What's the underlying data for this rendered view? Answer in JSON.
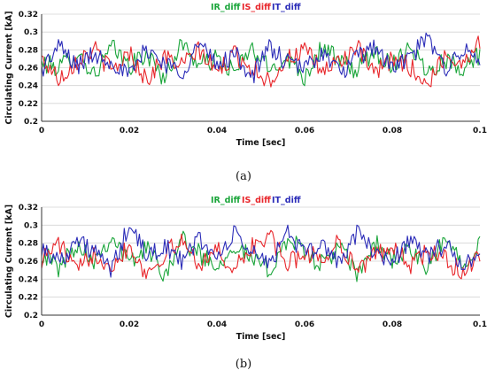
{
  "chart_data": [
    {
      "type": "line",
      "caption": "(a)",
      "xlabel": "Time [sec]",
      "ylabel": "Circulating Current [kA]",
      "xlim": [
        0,
        0.1
      ],
      "ylim": [
        0.2,
        0.32
      ],
      "x_ticks": [
        "0",
        "0.02",
        "0.04",
        "0.06",
        "0.08",
        "0.1"
      ],
      "y_ticks": [
        "0.2",
        "0.22",
        "0.24",
        "0.26",
        "0.28",
        "0.3",
        "0.32"
      ],
      "grid": "horizontal",
      "legend_position": "top-center",
      "x": [
        0,
        0.004,
        0.008,
        0.012,
        0.016,
        0.02,
        0.024,
        0.028,
        0.032,
        0.036,
        0.04,
        0.044,
        0.048,
        0.052,
        0.056,
        0.06,
        0.064,
        0.068,
        0.072,
        0.076,
        0.08,
        0.084,
        0.088,
        0.092,
        0.096,
        0.1
      ],
      "series": [
        {
          "name": "IR_diff",
          "color": "#1aa53a",
          "values": [
            0.265,
            0.26,
            0.278,
            0.252,
            0.283,
            0.262,
            0.275,
            0.248,
            0.288,
            0.263,
            0.27,
            0.255,
            0.281,
            0.258,
            0.272,
            0.25,
            0.284,
            0.266,
            0.257,
            0.279,
            0.262,
            0.286,
            0.255,
            0.27,
            0.26,
            0.275
          ]
        },
        {
          "name": "IS_diff",
          "color": "#e8262b",
          "values": [
            0.27,
            0.248,
            0.268,
            0.281,
            0.256,
            0.277,
            0.246,
            0.272,
            0.262,
            0.28,
            0.254,
            0.275,
            0.26,
            0.245,
            0.27,
            0.279,
            0.256,
            0.268,
            0.282,
            0.252,
            0.27,
            0.262,
            0.24,
            0.274,
            0.265,
            0.291
          ]
        },
        {
          "name": "IT_diff",
          "color": "#2b2cb8",
          "values": [
            0.258,
            0.284,
            0.262,
            0.275,
            0.268,
            0.25,
            0.282,
            0.265,
            0.255,
            0.287,
            0.262,
            0.276,
            0.25,
            0.283,
            0.265,
            0.26,
            0.278,
            0.254,
            0.27,
            0.285,
            0.258,
            0.272,
            0.292,
            0.26,
            0.28,
            0.266
          ]
        }
      ]
    },
    {
      "type": "line",
      "caption": "(b)",
      "xlabel": "Time [sec]",
      "ylabel": "Circulating Current [kA]",
      "xlim": [
        0,
        0.1
      ],
      "ylim": [
        0.2,
        0.32
      ],
      "x_ticks": [
        "0",
        "0.02",
        "0.04",
        "0.06",
        "0.08",
        "0.1"
      ],
      "y_ticks": [
        "0.2",
        "0.22",
        "0.24",
        "0.26",
        "0.28",
        "0.3",
        "0.32"
      ],
      "grid": "horizontal",
      "legend_position": "top-center",
      "x": [
        0,
        0.004,
        0.008,
        0.012,
        0.016,
        0.02,
        0.024,
        0.028,
        0.032,
        0.036,
        0.04,
        0.044,
        0.048,
        0.052,
        0.056,
        0.06,
        0.064,
        0.068,
        0.072,
        0.076,
        0.08,
        0.084,
        0.088,
        0.092,
        0.096,
        0.1
      ],
      "series": [
        {
          "name": "IR_diff",
          "color": "#1aa53a",
          "values": [
            0.27,
            0.252,
            0.28,
            0.262,
            0.288,
            0.258,
            0.275,
            0.246,
            0.284,
            0.268,
            0.255,
            0.279,
            0.262,
            0.249,
            0.285,
            0.27,
            0.256,
            0.276,
            0.244,
            0.28,
            0.262,
            0.272,
            0.25,
            0.285,
            0.26,
            0.28
          ]
        },
        {
          "name": "IS_diff",
          "color": "#e8262b",
          "values": [
            0.262,
            0.28,
            0.248,
            0.27,
            0.255,
            0.278,
            0.245,
            0.268,
            0.282,
            0.258,
            0.272,
            0.25,
            0.276,
            0.288,
            0.256,
            0.27,
            0.262,
            0.282,
            0.25,
            0.266,
            0.278,
            0.255,
            0.27,
            0.262,
            0.247,
            0.268
          ]
        },
        {
          "name": "IT_diff",
          "color": "#2b2cb8",
          "values": [
            0.275,
            0.26,
            0.283,
            0.27,
            0.25,
            0.3,
            0.265,
            0.278,
            0.258,
            0.286,
            0.262,
            0.29,
            0.27,
            0.255,
            0.296,
            0.265,
            0.28,
            0.258,
            0.292,
            0.27,
            0.26,
            0.284,
            0.266,
            0.278,
            0.255,
            0.27
          ]
        }
      ]
    }
  ]
}
